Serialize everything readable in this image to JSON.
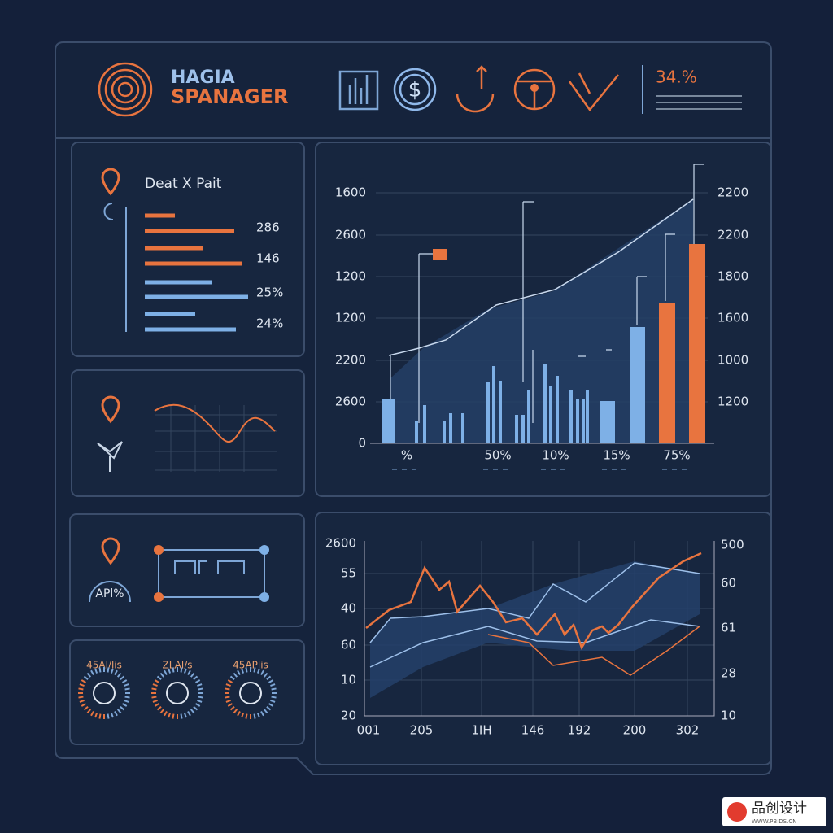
{
  "header": {
    "brand": [
      "HAGIA",
      "SPANAGER"
    ],
    "stat": "34.%"
  },
  "summary_panel": {
    "title": "Deat X Pait",
    "labels": [
      "286",
      "146",
      "25%",
      "24%"
    ]
  },
  "status_panel": {
    "label": "APl%"
  },
  "gauge_panel": {
    "labels": [
      "45Al/lis",
      "ZLAl/s",
      "45APlis"
    ]
  },
  "bar_panel": {
    "left_axis": [
      "1600",
      "2600",
      "1200",
      "1200",
      "2200",
      "2600",
      "0"
    ],
    "right_axis": [
      "2200",
      "2200",
      "1800",
      "1600",
      "1000",
      "1200"
    ],
    "x_labels": [
      "%",
      "50%",
      "10%",
      "15%",
      "75%"
    ]
  },
  "line_panel": {
    "left_axis": [
      "2600",
      "55",
      "40",
      "60",
      "10",
      "20"
    ],
    "right_axis": [
      "500",
      "60",
      "61",
      "28",
      "10"
    ],
    "x_labels": [
      "001",
      "205",
      "1IH",
      "146",
      "192",
      "200",
      "302"
    ]
  },
  "watermark": {
    "logo": "品创设计",
    "url": "WWW.PBIDS.CN"
  }
}
